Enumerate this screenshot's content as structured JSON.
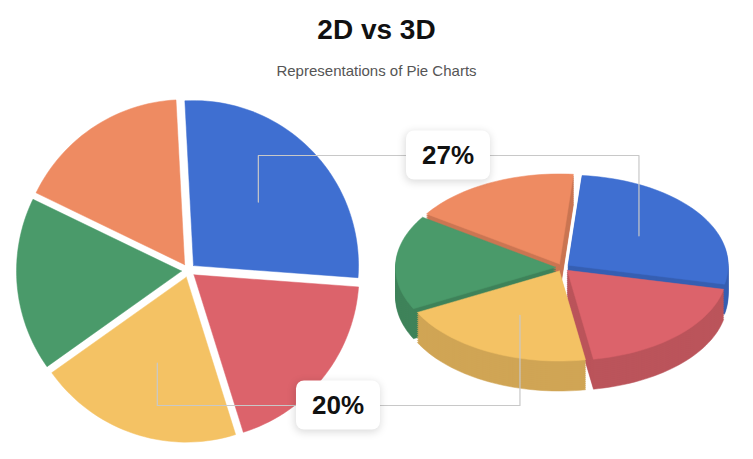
{
  "chart_data": [
    {
      "type": "pie",
      "title": "2D vs 3D",
      "subtitle": "Representations of Pie Charts",
      "values": [
        27,
        19,
        20,
        17,
        17
      ],
      "colors": [
        "#3f6fd1",
        "#dc636b",
        "#f4c264",
        "#4a9a6a",
        "#ee8b62"
      ],
      "value_labels": [
        "27%",
        null,
        "20%",
        null,
        null
      ]
    },
    {
      "type": "pie3d",
      "values": [
        27,
        19,
        20,
        17,
        17
      ],
      "colors": [
        "#3f6fd1",
        "#dc636b",
        "#f4c264",
        "#4a9a6a",
        "#ee8b62"
      ]
    }
  ]
}
